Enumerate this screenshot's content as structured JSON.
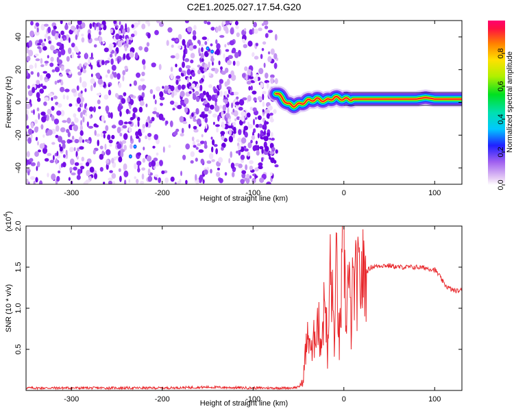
{
  "title": "C2E1.2025.027.17.54.G20",
  "colors": {
    "line": "#e8262a",
    "speckle": "#7a10e8",
    "axis": "#000000"
  },
  "chart_data": [
    {
      "type": "heatmap",
      "xlabel": "Height of straight line (km)",
      "ylabel": "Frequency (Hz)",
      "xlim": [
        -350,
        130
      ],
      "ylim": [
        -50,
        50
      ],
      "xticks": [
        -300,
        -200,
        -100,
        0,
        100
      ],
      "xtick_labels": [
        "-300",
        "-200",
        "-100",
        "0",
        "100"
      ],
      "yticks": [
        -40,
        -20,
        0,
        20,
        40
      ],
      "ytick_labels": [
        "-40",
        "-20",
        "0",
        "20",
        "40"
      ],
      "signal_onset_km": -75,
      "signal_track": {
        "x": [
          -75,
          -68,
          -62,
          -55,
          -48,
          -40,
          -30,
          -20,
          -10,
          0,
          20,
          40,
          60,
          80,
          90,
          100,
          115,
          130
        ],
        "y": [
          6,
          3,
          -1,
          -2,
          -1,
          1,
          2,
          1,
          3,
          2,
          2,
          2,
          2,
          2,
          3,
          2,
          2,
          2
        ]
      },
      "colorbar": {
        "label": "Normalized spectral amplitude",
        "range": [
          0,
          1
        ],
        "ticks": [
          0.0,
          0.2,
          0.4,
          0.6,
          0.8
        ],
        "tick_labels": [
          "0.0",
          "0.2",
          "0.4",
          "0.6",
          "0.8"
        ]
      }
    },
    {
      "type": "line",
      "xlabel": "Height of straight line (km)",
      "ylabel": "SNR (10 * v/v)",
      "y_multiplier": "(x10",
      "y_multiplier_exp": "4",
      "y_multiplier_close": ")",
      "xlim": [
        -350,
        130
      ],
      "ylim": [
        0,
        2.0
      ],
      "xticks": [
        -300,
        -200,
        -100,
        0,
        100
      ],
      "xtick_labels": [
        "-300",
        "-200",
        "-100",
        "0",
        "100"
      ],
      "yticks": [
        0.5,
        1.0,
        1.5,
        2.0
      ],
      "ytick_labels": [
        "0.5",
        "1.0",
        "1.5",
        "2.0"
      ],
      "series": [
        {
          "x": [
            -350,
            -300,
            -250,
            -200,
            -150,
            -100,
            -60,
            -50,
            -45,
            -42,
            -38,
            -35,
            -30,
            -25,
            -20,
            -18,
            -15,
            -10,
            -8,
            -5,
            -2,
            0,
            2,
            5,
            8,
            10,
            15,
            20,
            25,
            30,
            40,
            50,
            60,
            70,
            80,
            90,
            100,
            105,
            110,
            115,
            120,
            125,
            130
          ],
          "y": [
            0.03,
            0.03,
            0.03,
            0.03,
            0.04,
            0.03,
            0.03,
            0.04,
            0.1,
            0.5,
            0.7,
            0.4,
            0.9,
            0.6,
            1.2,
            0.3,
            1.5,
            0.6,
            1.6,
            0.5,
            1.4,
            2.0,
            0.9,
            1.35,
            0.8,
            1.25,
            1.3,
            1.38,
            1.45,
            1.5,
            1.52,
            1.52,
            1.5,
            1.5,
            1.5,
            1.49,
            1.47,
            1.4,
            1.3,
            1.25,
            1.22,
            1.21,
            1.22
          ]
        }
      ]
    }
  ]
}
